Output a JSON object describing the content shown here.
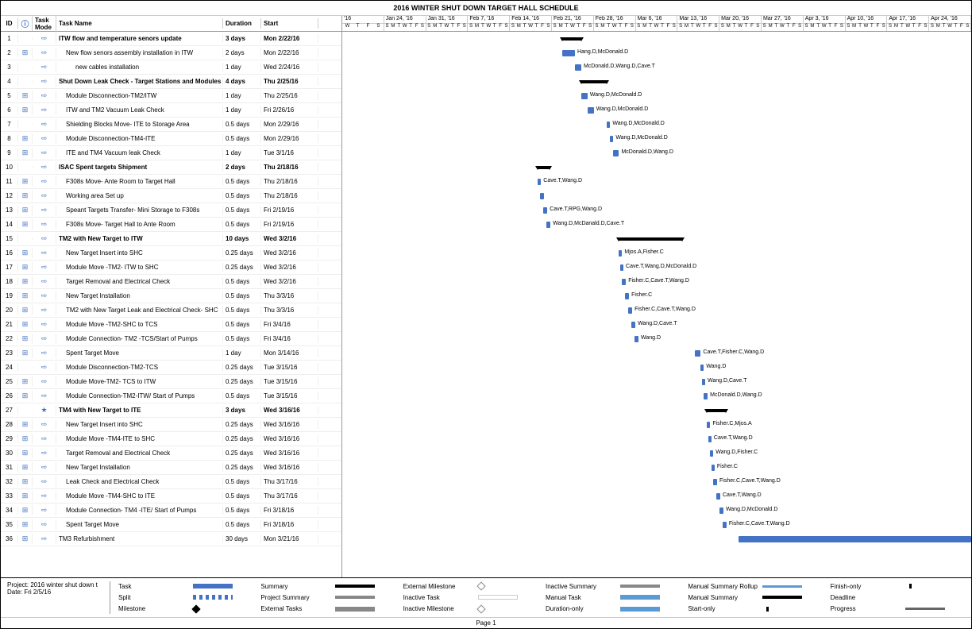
{
  "title": "2016 WINTER SHUT DOWN TARGET HALL SCHEDULE",
  "columns": {
    "id": "ID",
    "info": "ⓘ",
    "mode": "Task Mode",
    "name": "Task Name",
    "duration": "Duration",
    "start": "Start"
  },
  "timeline": {
    "start": "2016-01-13",
    "weeks": [
      "'16",
      "Jan 24, '16",
      "Jan 31, '16",
      "Feb 7, '16",
      "Feb 14, '16",
      "Feb 21, '16",
      "Feb 28, '16",
      "Mar 6, '16",
      "Mar 13, '16",
      "Mar 20, '16",
      "Mar 27, '16",
      "Apr 3, '16",
      "Apr 10, '16",
      "Apr 17, '16",
      "Apr 24, '16"
    ],
    "day_letters": [
      "S",
      "M",
      "T",
      "W",
      "T",
      "F",
      "S"
    ],
    "first_day_letters": [
      "W",
      "T",
      "F",
      "S"
    ]
  },
  "colors": {
    "task_bar": "#4472c4",
    "summary_bar": "#000000",
    "weekend_bg": "#f5f5f5",
    "grid": "#cccccc",
    "icon": "#4472c4"
  },
  "tasks": [
    {
      "id": 1,
      "info": "",
      "mode": "⇨",
      "name": "ITW flow and temperature senors update",
      "duration": "3 days",
      "start": "Mon 2/22/16",
      "bold": true,
      "indent": 0,
      "type": "summary",
      "bar": {
        "start_pct": 35.0,
        "width_pct": 3.0,
        "label": ""
      }
    },
    {
      "id": 2,
      "info": "⊞",
      "mode": "⇨",
      "name": "New flow senors assembly installation in ITW",
      "duration": "2 days",
      "start": "Mon 2/22/16",
      "bold": false,
      "indent": 1,
      "type": "task",
      "bar": {
        "start_pct": 35.0,
        "width_pct": 2.0,
        "label": "Hang.D,McDonald.D"
      }
    },
    {
      "id": 3,
      "info": "",
      "mode": "⇨",
      "name": "new cables installation",
      "duration": "1 day",
      "start": "Wed 2/24/16",
      "bold": false,
      "indent": 2,
      "type": "task",
      "bar": {
        "start_pct": 37.0,
        "width_pct": 1.0,
        "label": "McDonald.D,Wang.D,Cave.T"
      }
    },
    {
      "id": 4,
      "info": "",
      "mode": "⇨",
      "name": "Shut Down Leak Check - Target Stations and Modules",
      "duration": "4 days",
      "start": "Thu 2/25/16",
      "bold": true,
      "indent": 0,
      "type": "summary",
      "bar": {
        "start_pct": 38.0,
        "width_pct": 4.0,
        "label": ""
      }
    },
    {
      "id": 5,
      "info": "⊞",
      "mode": "⇨",
      "name": "Module Disconnection-TM2/ITW",
      "duration": "1 day",
      "start": "Thu 2/25/16",
      "bold": false,
      "indent": 1,
      "type": "task",
      "bar": {
        "start_pct": 38.0,
        "width_pct": 1.0,
        "label": "Wang.D,McDonald.D"
      }
    },
    {
      "id": 6,
      "info": "⊞",
      "mode": "⇨",
      "name": "ITW and TM2 Vacuum Leak Check",
      "duration": "1 day",
      "start": "Fri 2/26/16",
      "bold": false,
      "indent": 1,
      "type": "task",
      "bar": {
        "start_pct": 39.0,
        "width_pct": 1.0,
        "label": "Wang.D,McDonald.D"
      }
    },
    {
      "id": 7,
      "info": "",
      "mode": "⇨",
      "name": "Shielding Blocks Move- ITE to Storage Area",
      "duration": "0.5 days",
      "start": "Mon 2/29/16",
      "bold": false,
      "indent": 1,
      "type": "task",
      "bar": {
        "start_pct": 42.0,
        "width_pct": 0.6,
        "label": "Wang.D,McDonald.D"
      }
    },
    {
      "id": 8,
      "info": "⊞",
      "mode": "⇨",
      "name": "Module Disconnection-TM4-ITE",
      "duration": "0.5 days",
      "start": "Mon 2/29/16",
      "bold": false,
      "indent": 1,
      "type": "task",
      "bar": {
        "start_pct": 42.5,
        "width_pct": 0.6,
        "label": "Wang.D,McDonald.D"
      }
    },
    {
      "id": 9,
      "info": "⊞",
      "mode": "⇨",
      "name": "ITE and TM4 Vacuum leak Check",
      "duration": "1 day",
      "start": "Tue 3/1/16",
      "bold": false,
      "indent": 1,
      "type": "task",
      "bar": {
        "start_pct": 43.0,
        "width_pct": 1.0,
        "label": "McDonald.D,Wang.D"
      }
    },
    {
      "id": 10,
      "info": "",
      "mode": "⇨",
      "name": "ISAC Spent targets Shipment",
      "duration": "2 days",
      "start": "Thu 2/18/16",
      "bold": true,
      "indent": 0,
      "type": "summary",
      "bar": {
        "start_pct": 31.0,
        "width_pct": 2.0,
        "label": ""
      }
    },
    {
      "id": 11,
      "info": "⊞",
      "mode": "⇨",
      "name": "F308s Move- Ante Room to Target Hall",
      "duration": "0.5 days",
      "start": "Thu 2/18/16",
      "bold": false,
      "indent": 1,
      "type": "task",
      "bar": {
        "start_pct": 31.0,
        "width_pct": 0.6,
        "label": "Cave.T,Wang.D"
      }
    },
    {
      "id": 12,
      "info": "⊞",
      "mode": "⇨",
      "name": "Working area Set up",
      "duration": "0.5 days",
      "start": "Thu 2/18/16",
      "bold": false,
      "indent": 1,
      "type": "task",
      "bar": {
        "start_pct": 31.5,
        "width_pct": 0.6,
        "label": ""
      }
    },
    {
      "id": 13,
      "info": "⊞",
      "mode": "⇨",
      "name": "Speant Targets Transfer- Mini Storage to F308s",
      "duration": "0.5 days",
      "start": "Fri 2/19/16",
      "bold": false,
      "indent": 1,
      "type": "task",
      "bar": {
        "start_pct": 32.0,
        "width_pct": 0.6,
        "label": "Cave.T,RPG,Wang.D"
      }
    },
    {
      "id": 14,
      "info": "⊞",
      "mode": "⇨",
      "name": "F308s Move- Target Hall to Ante Room",
      "duration": "0.5 days",
      "start": "Fri 2/19/16",
      "bold": false,
      "indent": 1,
      "type": "task",
      "bar": {
        "start_pct": 32.5,
        "width_pct": 0.6,
        "label": "Wang.D,McDanald.D,Cave.T"
      }
    },
    {
      "id": 15,
      "info": "",
      "mode": "⇨",
      "name": "TM2 with New Target to ITW",
      "duration": "10 days",
      "start": "Wed 3/2/16",
      "bold": true,
      "indent": 0,
      "type": "summary",
      "bar": {
        "start_pct": 44.0,
        "width_pct": 10.0,
        "label": ""
      }
    },
    {
      "id": 16,
      "info": "⊞",
      "mode": "⇨",
      "name": "New Target Insert into SHC",
      "duration": "0.25 days",
      "start": "Wed 3/2/16",
      "bold": false,
      "indent": 1,
      "type": "task",
      "bar": {
        "start_pct": 44.0,
        "width_pct": 0.5,
        "label": "Mjos.A,Fisher.C"
      }
    },
    {
      "id": 17,
      "info": "⊞",
      "mode": "⇨",
      "name": "Module Move -TM2- ITW to SHC",
      "duration": "0.25 days",
      "start": "Wed 3/2/16",
      "bold": false,
      "indent": 1,
      "type": "task",
      "bar": {
        "start_pct": 44.2,
        "width_pct": 0.5,
        "label": "Cave.T,Wang.D,McDonald.D"
      }
    },
    {
      "id": 18,
      "info": "⊞",
      "mode": "⇨",
      "name": "Target Removal and Electrical Check",
      "duration": "0.5 days",
      "start": "Wed 3/2/16",
      "bold": false,
      "indent": 1,
      "type": "task",
      "bar": {
        "start_pct": 44.5,
        "width_pct": 0.6,
        "label": "Fisher.C,Cave.T,Wang.D"
      }
    },
    {
      "id": 19,
      "info": "⊞",
      "mode": "⇨",
      "name": "New Target Installation",
      "duration": "0.5 days",
      "start": "Thu 3/3/16",
      "bold": false,
      "indent": 1,
      "type": "task",
      "bar": {
        "start_pct": 45.0,
        "width_pct": 0.6,
        "label": "Fisher.C"
      }
    },
    {
      "id": 20,
      "info": "⊞",
      "mode": "⇨",
      "name": "TM2 with New Target Leak and Electrical Check- SHC",
      "duration": "0.5 days",
      "start": "Thu 3/3/16",
      "bold": false,
      "indent": 1,
      "type": "task",
      "bar": {
        "start_pct": 45.5,
        "width_pct": 0.6,
        "label": "Fisher.C,Cave.T,Wang.D"
      }
    },
    {
      "id": 21,
      "info": "⊞",
      "mode": "⇨",
      "name": "Module Move -TM2-SHC to TCS",
      "duration": "0.5 days",
      "start": "Fri 3/4/16",
      "bold": false,
      "indent": 1,
      "type": "task",
      "bar": {
        "start_pct": 46.0,
        "width_pct": 0.6,
        "label": "Wang.D,Cave.T"
      }
    },
    {
      "id": 22,
      "info": "⊞",
      "mode": "⇨",
      "name": "Module Connection- TM2 -TCS/Start of Pumps",
      "duration": "0.5 days",
      "start": "Fri 3/4/16",
      "bold": false,
      "indent": 1,
      "type": "task",
      "bar": {
        "start_pct": 46.5,
        "width_pct": 0.6,
        "label": "Wang.D"
      }
    },
    {
      "id": 23,
      "info": "⊞",
      "mode": "⇨",
      "name": "Spent Target Move",
      "duration": "1 day",
      "start": "Mon 3/14/16",
      "bold": false,
      "indent": 1,
      "type": "task",
      "bar": {
        "start_pct": 56.0,
        "width_pct": 1.0,
        "label": "Cave.T,Fisher.C,Wang.D"
      }
    },
    {
      "id": 24,
      "info": "",
      "mode": "⇨",
      "name": "Module Disconnection-TM2-TCS",
      "duration": "0.25 days",
      "start": "Tue 3/15/16",
      "bold": false,
      "indent": 1,
      "type": "task",
      "bar": {
        "start_pct": 57.0,
        "width_pct": 0.5,
        "label": "Wang.D"
      }
    },
    {
      "id": 25,
      "info": "⊞",
      "mode": "⇨",
      "name": "Module Move-TM2- TCS to ITW",
      "duration": "0.25 days",
      "start": "Tue 3/15/16",
      "bold": false,
      "indent": 1,
      "type": "task",
      "bar": {
        "start_pct": 57.2,
        "width_pct": 0.5,
        "label": "Wang.D,Cave.T"
      }
    },
    {
      "id": 26,
      "info": "⊞",
      "mode": "⇨",
      "name": "Module Connection-TM2-ITW/ Start of Pumps",
      "duration": "0.5 days",
      "start": "Tue 3/15/16",
      "bold": false,
      "indent": 1,
      "type": "task",
      "bar": {
        "start_pct": 57.5,
        "width_pct": 0.6,
        "label": "McDonald.D,Wang.D"
      }
    },
    {
      "id": 27,
      "info": "",
      "mode": "★",
      "name": "TM4 with New Target to ITE",
      "duration": "3 days",
      "start": "Wed 3/16/16",
      "bold": true,
      "indent": 0,
      "type": "summary",
      "bar": {
        "start_pct": 58.0,
        "width_pct": 3.0,
        "label": ""
      }
    },
    {
      "id": 28,
      "info": "⊞",
      "mode": "⇨",
      "name": "New Target Insert into SHC",
      "duration": "0.25 days",
      "start": "Wed 3/16/16",
      "bold": false,
      "indent": 1,
      "type": "task",
      "bar": {
        "start_pct": 58.0,
        "width_pct": 0.5,
        "label": "Fisher.C,Mjos.A"
      }
    },
    {
      "id": 29,
      "info": "⊞",
      "mode": "⇨",
      "name": "Module Move -TM4-ITE to SHC",
      "duration": "0.25 days",
      "start": "Wed 3/16/16",
      "bold": false,
      "indent": 1,
      "type": "task",
      "bar": {
        "start_pct": 58.2,
        "width_pct": 0.5,
        "label": "Cave.T,Wang.D"
      }
    },
    {
      "id": 30,
      "info": "⊞",
      "mode": "⇨",
      "name": "Target Removal and Electrical Check",
      "duration": "0.25 days",
      "start": "Wed 3/16/16",
      "bold": false,
      "indent": 1,
      "type": "task",
      "bar": {
        "start_pct": 58.5,
        "width_pct": 0.5,
        "label": "Wang.D,Fisher.C"
      }
    },
    {
      "id": 31,
      "info": "⊞",
      "mode": "⇨",
      "name": "New Target Installation",
      "duration": "0.25 days",
      "start": "Wed 3/16/16",
      "bold": false,
      "indent": 1,
      "type": "task",
      "bar": {
        "start_pct": 58.7,
        "width_pct": 0.5,
        "label": "Fisher.C"
      }
    },
    {
      "id": 32,
      "info": "⊞",
      "mode": "⇨",
      "name": "Leak Check and Electrical Check",
      "duration": "0.5 days",
      "start": "Thu 3/17/16",
      "bold": false,
      "indent": 1,
      "type": "task",
      "bar": {
        "start_pct": 59.0,
        "width_pct": 0.6,
        "label": "Fisher.C,Cave.T,Wang.D"
      }
    },
    {
      "id": 33,
      "info": "⊞",
      "mode": "⇨",
      "name": "Module Move -TM4-SHC to ITE",
      "duration": "0.5 days",
      "start": "Thu 3/17/16",
      "bold": false,
      "indent": 1,
      "type": "task",
      "bar": {
        "start_pct": 59.5,
        "width_pct": 0.6,
        "label": "Cave.T,Wang.D"
      }
    },
    {
      "id": 34,
      "info": "⊞",
      "mode": "⇨",
      "name": "Module Connection- TM4 -ITE/ Start of Pumps",
      "duration": "0.5 days",
      "start": "Fri 3/18/16",
      "bold": false,
      "indent": 1,
      "type": "task",
      "bar": {
        "start_pct": 60.0,
        "width_pct": 0.6,
        "label": "Wang.D,McDonald.D"
      }
    },
    {
      "id": 35,
      "info": "⊞",
      "mode": "⇨",
      "name": "Spent Target Move",
      "duration": "0.5 days",
      "start": "Fri 3/18/16",
      "bold": false,
      "indent": 1,
      "type": "task",
      "bar": {
        "start_pct": 60.5,
        "width_pct": 0.6,
        "label": "Fisher.C,Cave.T,Wang.D"
      }
    },
    {
      "id": 36,
      "info": "⊞",
      "mode": "⇨",
      "name": "TM3 Refurbishment",
      "duration": "30 days",
      "start": "Mon 3/21/16",
      "bold": false,
      "indent": 0,
      "type": "task",
      "bar": {
        "start_pct": 63.0,
        "width_pct": 37.0,
        "label": ""
      }
    }
  ],
  "legend": {
    "project_label": "Project: 2016 winter shut down t",
    "date_label": "Date: Fri 2/5/16",
    "items": [
      {
        "name": "Task",
        "sw": "sw-task"
      },
      {
        "name": "Split",
        "sw": "sw-split"
      },
      {
        "name": "Milestone",
        "sw": "sw-milestone"
      },
      {
        "name": "Summary",
        "sw": "sw-summary"
      },
      {
        "name": "Project Summary",
        "sw": "sw-psummary"
      },
      {
        "name": "External Tasks",
        "sw": "sw-ext"
      },
      {
        "name": "External Milestone",
        "sw": "sw-ext-mile"
      },
      {
        "name": "Inactive Task",
        "sw": "sw-inactive"
      },
      {
        "name": "Inactive Milestone",
        "sw": "sw-ext-mile"
      },
      {
        "name": "Inactive Summary",
        "sw": "sw-psummary"
      },
      {
        "name": "Manual Task",
        "sw": "sw-manual"
      },
      {
        "name": "Duration-only",
        "sw": "sw-manual"
      },
      {
        "name": "Manual Summary Rollup",
        "sw": "sw-msr"
      },
      {
        "name": "Manual Summary",
        "sw": "sw-summary"
      },
      {
        "name": "Start-only",
        "sw": "sw-finish"
      },
      {
        "name": "Finish-only",
        "sw": "sw-finish"
      },
      {
        "name": "Deadline",
        "sw": "sw-deadline"
      },
      {
        "name": "Progress",
        "sw": "sw-progress"
      }
    ]
  },
  "footer": "Page 1"
}
